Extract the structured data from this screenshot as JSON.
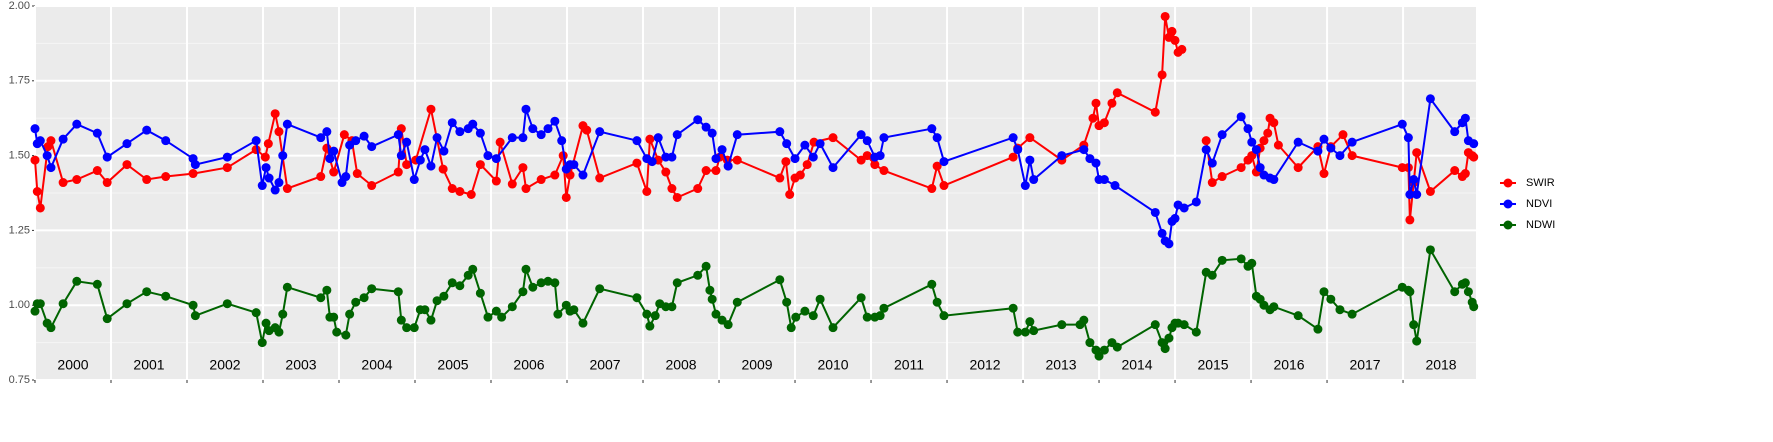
{
  "chart_data": {
    "type": "line",
    "xlim": [
      2000,
      2018.96
    ],
    "xticks": [
      2000,
      2001,
      2002,
      2003,
      2004,
      2005,
      2006,
      2007,
      2008,
      2009,
      2010,
      2011,
      2012,
      2013,
      2014,
      2015,
      2016,
      2017,
      2018
    ],
    "ylim": [
      0.75,
      2.0
    ],
    "yticks": [
      0.75,
      {
        "value": 1.0,
        "label": "1.00"
      },
      1.25,
      {
        "value": 1.5,
        "label": "1.50"
      },
      1.75,
      {
        "value": 2.0,
        "label": "2.00"
      }
    ],
    "yminor": [
      0.875,
      1.125,
      1.375,
      1.625,
      1.875
    ],
    "grid": true,
    "legend": "right",
    "annotations": [
      {
        "text": "2000",
        "x": 2000.5
      },
      {
        "text": "2001",
        "x": 2001.5
      },
      {
        "text": "2002",
        "x": 2002.5
      },
      {
        "text": "2003",
        "x": 2003.5
      },
      {
        "text": "2004",
        "x": 2004.5
      },
      {
        "text": "2005",
        "x": 2005.5
      },
      {
        "text": "2006",
        "x": 2006.5
      },
      {
        "text": "2007",
        "x": 2007.5
      },
      {
        "text": "2008",
        "x": 2008.5
      },
      {
        "text": "2009",
        "x": 2009.5
      },
      {
        "text": "2010",
        "x": 2010.5
      },
      {
        "text": "2011",
        "x": 2011.5
      },
      {
        "text": "2012",
        "x": 2012.5
      },
      {
        "text": "2013",
        "x": 2013.5
      },
      {
        "text": "2014",
        "x": 2014.5
      },
      {
        "text": "2015",
        "x": 2015.5
      },
      {
        "text": "2016",
        "x": 2016.5
      },
      {
        "text": "2017",
        "x": 2017.5
      },
      {
        "text": "2018",
        "x": 2018.5
      }
    ],
    "series": [
      {
        "name": "SWIR",
        "color": "#ff0000",
        "x": [
          2000.0,
          2000.03,
          2000.07,
          2000.17,
          2000.21,
          2000.37,
          2000.55,
          2000.82,
          2000.95,
          2001.21,
          2001.47,
          2001.72,
          2002.08,
          2002.53,
          2002.91,
          2003.03,
          2003.07,
          2003.16,
          2003.21,
          2003.32,
          2003.76,
          2003.84,
          2003.93,
          2004.07,
          2004.17,
          2004.24,
          2004.43,
          2004.78,
          2004.82,
          2004.89,
          2005.01,
          2005.21,
          2005.37,
          2005.49,
          2005.59,
          2005.74,
          2005.86,
          2006.07,
          2006.12,
          2006.28,
          2006.42,
          2006.46,
          2006.66,
          2006.84,
          2006.95,
          2006.99,
          2007.04,
          2007.21,
          2007.26,
          2007.43,
          2007.92,
          2008.05,
          2008.09,
          2008.2,
          2008.3,
          2008.38,
          2008.45,
          2008.72,
          2008.83,
          2008.96,
          2009.01,
          2009.11,
          2009.24,
          2009.8,
          2009.88,
          2009.93,
          2010.0,
          2010.07,
          2010.16,
          2010.25,
          2010.5,
          2010.87,
          2010.95,
          2011.05,
          2011.17,
          2011.8,
          2011.87,
          2011.96,
          2012.87,
          2012.93,
          2013.09,
          2013.51,
          2013.8,
          2013.92,
          2013.96,
          2014.0,
          2014.07,
          2014.17,
          2014.24,
          2014.74,
          2014.83,
          2014.87,
          2014.92,
          2014.96,
          2015.0,
          2015.04,
          2015.09,
          null,
          2015.41,
          2015.49,
          2015.62,
          2015.87,
          2015.96,
          2016.01,
          2016.07,
          2016.12,
          2016.17,
          2016.22,
          2016.25,
          2016.3,
          2016.36,
          2016.62,
          2016.88,
          2016.96,
          2017.05,
          2017.21,
          2017.33,
          2017.99,
          2018.07,
          2018.09,
          2018.14,
          2018.18,
          2018.36,
          2018.68,
          2018.78,
          2018.82,
          2018.86,
          2018.91,
          2018.93
        ],
        "values": [
          1.485,
          1.38,
          1.325,
          1.53,
          1.55,
          1.41,
          1.42,
          1.45,
          1.41,
          1.47,
          1.42,
          1.43,
          1.44,
          1.46,
          1.52,
          1.495,
          1.54,
          1.64,
          1.58,
          1.39,
          1.43,
          1.525,
          1.445,
          1.57,
          1.55,
          1.44,
          1.4,
          1.445,
          1.59,
          1.47,
          1.485,
          1.655,
          1.455,
          1.39,
          1.38,
          1.37,
          1.47,
          1.415,
          1.545,
          1.405,
          1.46,
          1.39,
          1.42,
          1.435,
          1.5,
          1.36,
          1.435,
          1.6,
          1.585,
          1.425,
          1.475,
          1.38,
          1.555,
          1.485,
          1.445,
          1.39,
          1.36,
          1.39,
          1.45,
          1.45,
          1.495,
          1.485,
          1.485,
          1.425,
          1.48,
          1.37,
          1.425,
          1.435,
          1.47,
          1.545,
          1.56,
          1.485,
          1.5,
          1.47,
          1.45,
          1.39,
          1.465,
          1.4,
          1.495,
          1.525,
          1.56,
          1.485,
          1.535,
          1.625,
          1.675,
          1.6,
          1.61,
          1.675,
          1.71,
          1.645,
          1.77,
          1.965,
          1.895,
          1.915,
          1.885,
          1.845,
          1.855,
          null,
          1.55,
          1.41,
          1.43,
          1.46,
          1.485,
          1.5,
          1.445,
          1.525,
          1.55,
          1.575,
          1.625,
          1.61,
          1.535,
          1.46,
          1.53,
          1.44,
          1.53,
          1.57,
          1.5,
          1.46,
          1.46,
          1.285,
          1.41,
          1.51,
          1.38,
          1.45,
          1.43,
          1.44,
          1.51,
          1.5,
          1.495
        ]
      },
      {
        "name": "NDVI",
        "color": "#0000ff",
        "x": [
          2000.0,
          2000.03,
          2000.07,
          2000.16,
          2000.21,
          2000.37,
          2000.55,
          2000.82,
          2000.95,
          2001.21,
          2001.47,
          2001.72,
          2002.08,
          2002.11,
          2002.53,
          2002.91,
          2002.99,
          2003.04,
          2003.08,
          2003.16,
          2003.21,
          2003.26,
          2003.32,
          2003.76,
          2003.84,
          2003.88,
          2003.93,
          2004.04,
          2004.09,
          2004.14,
          2004.22,
          2004.33,
          2004.43,
          2004.78,
          2004.82,
          2004.89,
          2004.99,
          2005.07,
          2005.13,
          2005.21,
          2005.29,
          2005.38,
          2005.49,
          2005.59,
          2005.7,
          2005.76,
          2005.86,
          2005.96,
          2006.07,
          2006.28,
          2006.42,
          2006.46,
          2006.55,
          2006.66,
          2006.75,
          2006.84,
          2006.93,
          2006.99,
          2007.04,
          2007.09,
          2007.21,
          2007.43,
          2007.92,
          2008.05,
          2008.12,
          2008.2,
          2008.3,
          2008.38,
          2008.45,
          2008.72,
          2008.83,
          2008.91,
          2008.96,
          2009.04,
          2009.12,
          2009.24,
          2009.8,
          2009.89,
          2010.0,
          2010.13,
          2010.24,
          2010.33,
          2010.5,
          2010.87,
          2010.95,
          2011.05,
          2011.12,
          2011.17,
          2011.8,
          2011.87,
          2011.96,
          2012.87,
          2012.93,
          2013.03,
          2013.09,
          2013.14,
          2013.51,
          2013.8,
          2013.88,
          2013.96,
          2014.0,
          2014.07,
          2014.21,
          2014.74,
          2014.83,
          2014.87,
          2014.92,
          2014.96,
          2015.0,
          2015.04,
          2015.12,
          2015.28,
          2015.41,
          2015.49,
          2015.62,
          2015.87,
          2015.96,
          2016.01,
          2016.07,
          2016.12,
          2016.17,
          2016.25,
          2016.3,
          2016.62,
          2016.88,
          2016.96,
          2017.05,
          2017.17,
          2017.33,
          2017.99,
          2018.07,
          2018.09,
          2018.14,
          2018.18,
          2018.36,
          2018.68,
          2018.78,
          2018.82,
          2018.86,
          2018.93
        ],
        "values": [
          1.59,
          1.54,
          1.55,
          1.5,
          1.46,
          1.555,
          1.605,
          1.575,
          1.495,
          1.54,
          1.585,
          1.55,
          1.49,
          1.47,
          1.495,
          1.55,
          1.4,
          1.46,
          1.425,
          1.385,
          1.41,
          1.5,
          1.605,
          1.56,
          1.58,
          1.49,
          1.515,
          1.41,
          1.43,
          1.535,
          1.55,
          1.565,
          1.53,
          1.57,
          1.5,
          1.545,
          1.42,
          1.485,
          1.52,
          1.465,
          1.56,
          1.515,
          1.61,
          1.58,
          1.59,
          1.605,
          1.575,
          1.5,
          1.49,
          1.56,
          1.56,
          1.655,
          1.59,
          1.57,
          1.59,
          1.615,
          1.55,
          1.455,
          1.47,
          1.47,
          1.435,
          1.58,
          1.55,
          1.49,
          1.48,
          1.56,
          1.495,
          1.495,
          1.57,
          1.62,
          1.595,
          1.575,
          1.49,
          1.52,
          1.465,
          1.57,
          1.58,
          1.54,
          1.49,
          1.535,
          1.495,
          1.54,
          1.46,
          1.57,
          1.55,
          1.495,
          1.5,
          1.56,
          1.59,
          1.56,
          1.48,
          1.56,
          1.52,
          1.4,
          1.485,
          1.42,
          1.5,
          1.52,
          1.49,
          1.475,
          1.42,
          1.42,
          1.4,
          1.31,
          1.24,
          1.215,
          1.205,
          1.28,
          1.29,
          1.335,
          1.325,
          1.345,
          1.52,
          1.475,
          1.57,
          1.63,
          1.59,
          1.545,
          1.52,
          1.46,
          1.435,
          1.425,
          1.42,
          1.545,
          1.515,
          1.555,
          1.525,
          1.5,
          1.545,
          1.605,
          1.56,
          1.37,
          1.42,
          1.37,
          1.69,
          1.58,
          1.61,
          1.625,
          1.55,
          1.54
        ]
      },
      {
        "name": "NDWI",
        "color": "#006400",
        "x": [
          2000.0,
          2000.03,
          2000.07,
          2000.16,
          2000.21,
          2000.37,
          2000.55,
          2000.82,
          2000.95,
          2001.21,
          2001.47,
          2001.72,
          2002.08,
          2002.11,
          2002.53,
          2002.91,
          2002.99,
          2003.04,
          2003.08,
          2003.16,
          2003.21,
          2003.26,
          2003.32,
          2003.76,
          2003.84,
          2003.88,
          2003.93,
          2003.97,
          2004.09,
          2004.14,
          2004.22,
          2004.33,
          2004.43,
          2004.78,
          2004.82,
          2004.89,
          2004.99,
          2005.07,
          2005.13,
          2005.21,
          2005.29,
          2005.38,
          2005.49,
          2005.59,
          2005.7,
          2005.76,
          2005.86,
          2005.96,
          2006.07,
          2006.14,
          2006.28,
          2006.42,
          2006.46,
          2006.55,
          2006.66,
          2006.75,
          2006.84,
          2006.88,
          2006.99,
          2007.04,
          2007.09,
          2007.21,
          2007.43,
          2007.92,
          2008.05,
          2008.09,
          2008.16,
          2008.22,
          2008.3,
          2008.38,
          2008.45,
          2008.72,
          2008.83,
          2008.88,
          2008.91,
          2008.96,
          2009.04,
          2009.12,
          2009.24,
          2009.8,
          2009.89,
          2009.95,
          2010.01,
          2010.13,
          2010.24,
          2010.33,
          2010.5,
          2010.87,
          2010.95,
          2011.05,
          2011.12,
          2011.17,
          2011.8,
          2011.87,
          2011.96,
          2012.87,
          2012.93,
          2013.03,
          2013.09,
          2013.14,
          2013.51,
          2013.75,
          2013.8,
          2013.88,
          2013.96,
          2014.0,
          2014.07,
          2014.17,
          2014.24,
          2014.74,
          2014.83,
          2014.87,
          2014.92,
          2014.96,
          2015.0,
          2015.04,
          2015.12,
          2015.28,
          2015.41,
          2015.49,
          2015.62,
          2015.87,
          2015.96,
          2016.01,
          2016.07,
          2016.12,
          2016.17,
          2016.25,
          2016.3,
          2016.62,
          2016.88,
          2016.96,
          2017.05,
          2017.17,
          2017.33,
          2017.99,
          2018.07,
          2018.09,
          2018.14,
          2018.18,
          2018.36,
          2018.68,
          2018.78,
          2018.82,
          2018.86,
          2018.91,
          2018.93
        ],
        "values": [
          0.98,
          1.005,
          1.005,
          0.94,
          0.925,
          1.005,
          1.08,
          1.07,
          0.955,
          1.005,
          1.045,
          1.03,
          1.0,
          0.965,
          1.005,
          0.975,
          0.875,
          0.94,
          0.915,
          0.925,
          0.91,
          0.97,
          1.06,
          1.025,
          1.05,
          0.96,
          0.96,
          0.91,
          0.9,
          0.97,
          1.01,
          1.025,
          1.055,
          1.045,
          0.95,
          0.925,
          0.925,
          0.985,
          0.985,
          0.95,
          1.015,
          1.03,
          1.075,
          1.065,
          1.1,
          1.12,
          1.04,
          0.96,
          0.98,
          0.96,
          0.995,
          1.045,
          1.12,
          1.06,
          1.075,
          1.08,
          1.075,
          0.97,
          1.0,
          0.98,
          0.985,
          0.94,
          1.055,
          1.025,
          0.97,
          0.93,
          0.965,
          1.005,
          0.995,
          0.995,
          1.075,
          1.1,
          1.13,
          1.05,
          1.02,
          0.97,
          0.95,
          0.935,
          1.01,
          1.085,
          1.01,
          0.925,
          0.96,
          0.98,
          0.965,
          1.02,
          0.925,
          1.025,
          0.96,
          0.96,
          0.965,
          0.99,
          1.07,
          1.01,
          0.965,
          0.99,
          0.91,
          0.91,
          0.945,
          0.915,
          0.935,
          0.935,
          0.95,
          0.875,
          0.85,
          0.83,
          0.85,
          0.875,
          0.86,
          0.935,
          0.875,
          0.855,
          0.89,
          0.925,
          0.94,
          0.94,
          0.935,
          0.91,
          1.11,
          1.1,
          1.15,
          1.155,
          1.13,
          1.14,
          1.03,
          1.02,
          1.0,
          0.985,
          0.995,
          0.965,
          0.92,
          1.045,
          1.02,
          0.985,
          0.97,
          1.06,
          1.05,
          1.045,
          0.935,
          0.88,
          1.185,
          1.045,
          1.07,
          1.075,
          1.045,
          1.01,
          0.995
        ]
      }
    ]
  }
}
